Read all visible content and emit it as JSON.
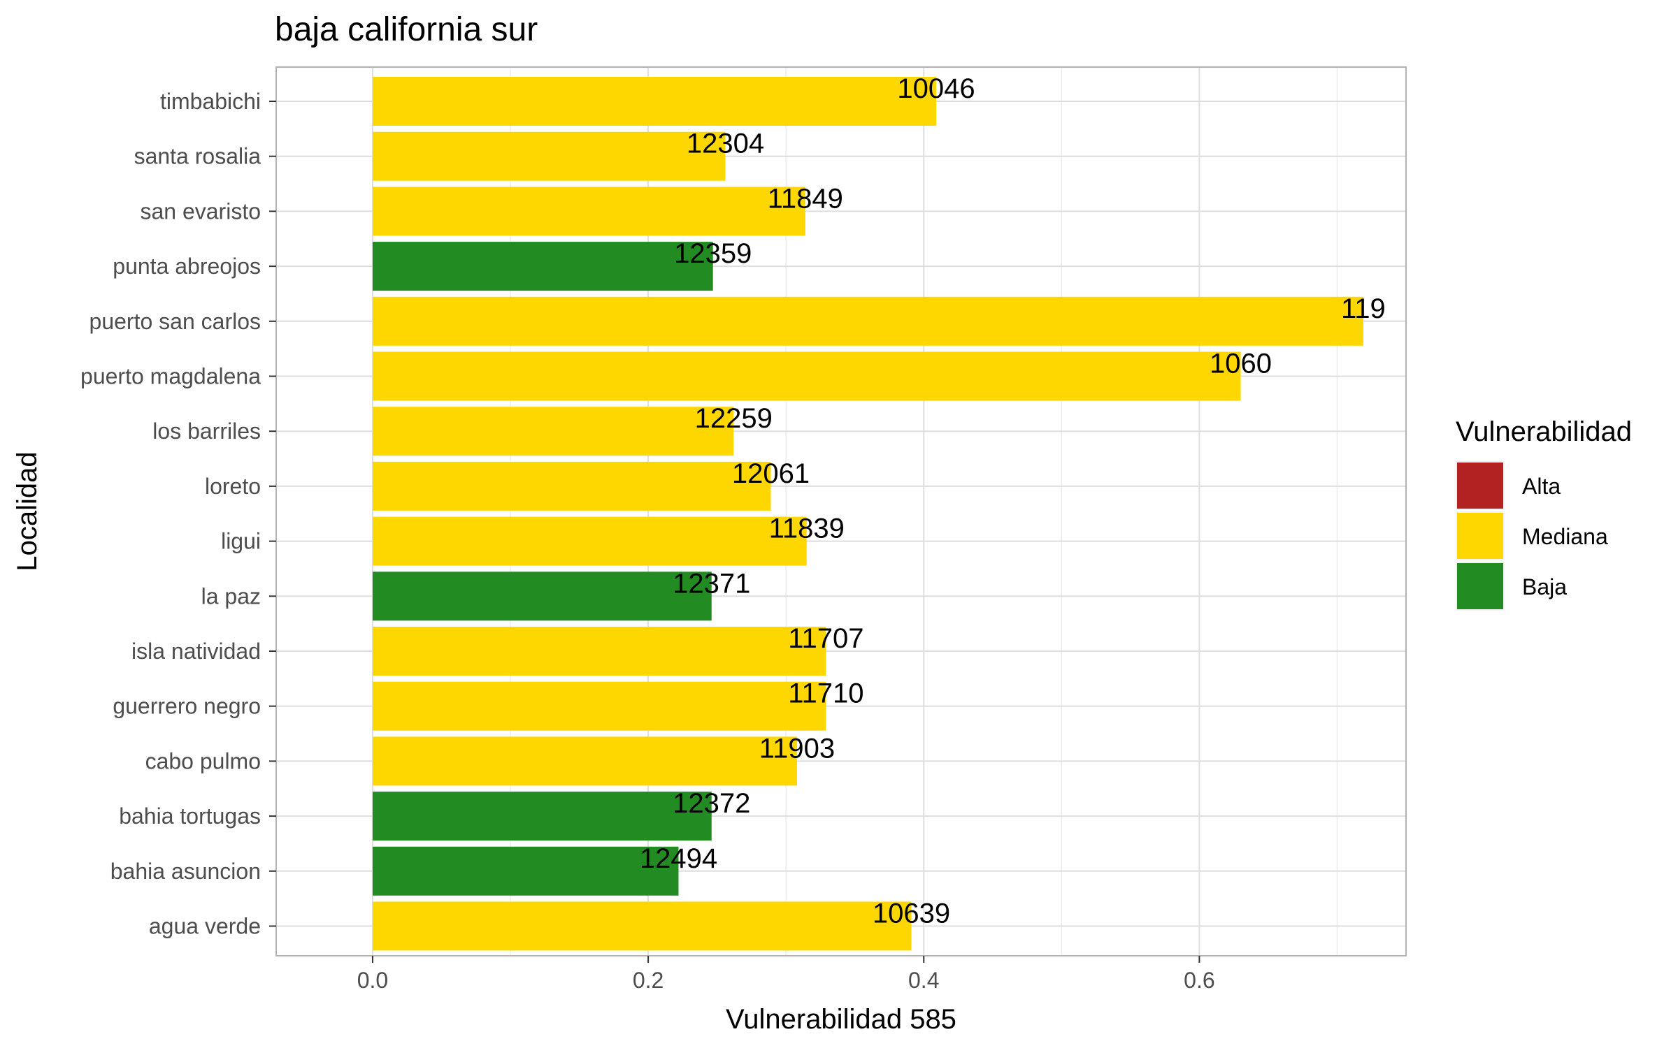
{
  "chart_data": {
    "type": "bar",
    "orientation": "horizontal",
    "title": "baja california sur",
    "xlabel": "Vulnerabilidad 585",
    "ylabel": "Localidad",
    "xlim": [
      -0.07,
      0.75
    ],
    "x_ticks": [
      0.0,
      0.2,
      0.4,
      0.6
    ],
    "x_tick_labels": [
      "0.0",
      "0.2",
      "0.4",
      "0.6"
    ],
    "grid": true,
    "legend": {
      "title": "Vulnerabilidad",
      "position": "right",
      "entries": [
        {
          "key": "alta",
          "label": "Alta",
          "color": "#B22222"
        },
        {
          "key": "mediana",
          "label": "Mediana",
          "color": "#FFD700"
        },
        {
          "key": "baja",
          "label": "Baja",
          "color": "#228B22"
        }
      ]
    },
    "categories": [
      "timbabichi",
      "santa rosalia",
      "san evaristo",
      "punta abreojos",
      "puerto san carlos",
      "puerto magdalena",
      "los barriles",
      "loreto",
      "ligui",
      "la paz",
      "isla natividad",
      "guerrero negro",
      "cabo pulmo",
      "bahia tortugas",
      "bahia asuncion",
      "agua verde"
    ],
    "values": [
      0.409,
      0.256,
      0.314,
      0.247,
      0.719,
      0.63,
      0.262,
      0.289,
      0.315,
      0.246,
      0.329,
      0.329,
      0.308,
      0.246,
      0.222,
      0.391
    ],
    "data_labels": [
      "10046",
      "12304",
      "11849",
      "12359",
      "119",
      "1060",
      "12259",
      "12061",
      "11839",
      "12371",
      "11707",
      "11710",
      "11903",
      "12372",
      "12494",
      "10639"
    ],
    "groups": [
      "mediana",
      "mediana",
      "mediana",
      "baja",
      "mediana",
      "mediana",
      "mediana",
      "mediana",
      "mediana",
      "baja",
      "mediana",
      "mediana",
      "mediana",
      "baja",
      "baja",
      "mediana"
    ]
  }
}
